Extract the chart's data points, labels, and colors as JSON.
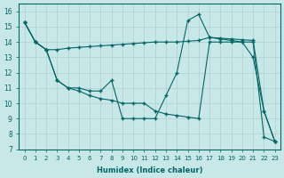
{
  "xlabel": "Humidex (Indice chaleur)",
  "xlim": [
    -0.5,
    23.5
  ],
  "ylim": [
    7,
    16.5
  ],
  "yticks": [
    7,
    8,
    9,
    10,
    11,
    12,
    13,
    14,
    15,
    16
  ],
  "xticks": [
    0,
    1,
    2,
    3,
    4,
    5,
    6,
    7,
    8,
    9,
    10,
    11,
    12,
    13,
    14,
    15,
    16,
    17,
    18,
    19,
    20,
    21,
    22,
    23
  ],
  "bg_color": "#c8e8e8",
  "line_color": "#006666",
  "line1_x": [
    0,
    1,
    2,
    3,
    4,
    5,
    6,
    7,
    8,
    9,
    10,
    11,
    12,
    13,
    14,
    15,
    16,
    17,
    18,
    19,
    20,
    21,
    22,
    23
  ],
  "line1_y": [
    15.3,
    14.0,
    13.5,
    13.5,
    13.6,
    13.65,
    13.7,
    13.75,
    13.8,
    13.85,
    13.9,
    13.95,
    14.0,
    14.0,
    14.0,
    14.05,
    14.1,
    14.3,
    14.25,
    14.2,
    14.15,
    14.1,
    9.5,
    7.5
  ],
  "line2_x": [
    0,
    1,
    2,
    3,
    4,
    5,
    6,
    7,
    8,
    9,
    10,
    11,
    12,
    13,
    14,
    15,
    16,
    17,
    18,
    19,
    20,
    21,
    22,
    23
  ],
  "line2_y": [
    15.3,
    14.0,
    13.5,
    11.5,
    11.0,
    11.0,
    10.8,
    10.8,
    11.5,
    9.0,
    9.0,
    9.0,
    9.0,
    10.5,
    12.0,
    15.4,
    15.8,
    14.3,
    14.2,
    14.1,
    14.0,
    13.0,
    9.5,
    7.5
  ],
  "line3_x": [
    0,
    1,
    2,
    3,
    4,
    5,
    6,
    7,
    8,
    9,
    10,
    11,
    12,
    13,
    14,
    15,
    16,
    17,
    18,
    19,
    20,
    21,
    22,
    23
  ],
  "line3_y": [
    15.3,
    14.0,
    13.5,
    11.5,
    11.0,
    10.8,
    10.5,
    10.3,
    10.2,
    10.0,
    10.0,
    10.0,
    9.5,
    9.3,
    9.2,
    9.1,
    9.0,
    14.0,
    14.0,
    14.0,
    14.0,
    14.0,
    7.8,
    7.5
  ]
}
